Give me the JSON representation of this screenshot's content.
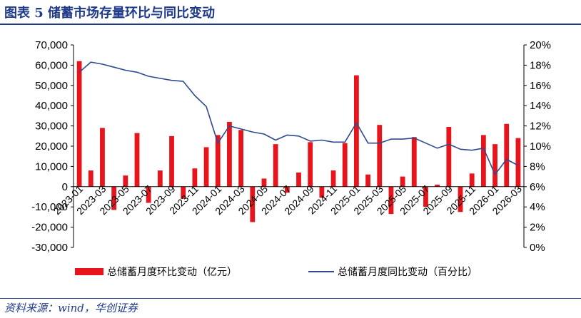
{
  "header": {
    "title": "图表 5   储蓄市场存量环比与同比变动"
  },
  "footer": {
    "source": "资料来源：wind，华创证券"
  },
  "chart_data": {
    "type": "bar",
    "title": "储蓄市场存量环比与同比变动",
    "xlabel": "",
    "ylabel": "",
    "ylim": [
      -30000,
      70000
    ],
    "y2lim": [
      0,
      20
    ],
    "grid": false,
    "legend_position": "bottom",
    "y_ticks": [
      "70,000",
      "60,000",
      "50,000",
      "40,000",
      "30,000",
      "20,000",
      "10,000",
      "0",
      "-10,000",
      "-20,000",
      "-30,000"
    ],
    "y2_ticks": [
      "20%",
      "18%",
      "16%",
      "14%",
      "12%",
      "10%",
      "8%",
      "6%",
      "4%",
      "2%",
      "0%"
    ],
    "x_ticks": [
      "2023-01",
      "2023-03",
      "2023-05",
      "2023-07",
      "2023-09",
      "2023-11",
      "2024-01",
      "2024-03",
      "2024-05",
      "2024-07",
      "2024-09",
      "2024-11",
      "2025-01",
      "2025-03",
      "2025-05",
      "2025-07",
      "2025-09",
      "2025-11",
      "2026-01",
      "2026-03"
    ],
    "categories": [
      "2023-01",
      "2023-02",
      "2023-03",
      "2023-04",
      "2023-05",
      "2023-06",
      "2023-07",
      "2023-08",
      "2023-09",
      "2023-10",
      "2023-11",
      "2023-12",
      "2024-01",
      "2024-02",
      "2024-03",
      "2024-04",
      "2024-05",
      "2024-06",
      "2024-07",
      "2024-08",
      "2024-09",
      "2024-10",
      "2024-11",
      "2024-12",
      "2025-01",
      "2025-02",
      "2025-03",
      "2025-04",
      "2025-05",
      "2025-06",
      "2025-07",
      "2025-08",
      "2025-09",
      "2025-10",
      "2025-11",
      "2025-12",
      "2026-01",
      "2026-02",
      "2026-03"
    ],
    "series": [
      {
        "name": "总储蓄月度环比变动（亿元）",
        "kind": "bar",
        "axis": "left",
        "color": "#e8141b",
        "values": [
          62000,
          8000,
          29000,
          -11500,
          5500,
          26500,
          -8000,
          8000,
          25000,
          -6000,
          9000,
          19500,
          25500,
          32000,
          28000,
          -17500,
          4000,
          21000,
          -3000,
          7000,
          22000,
          -5500,
          8000,
          21500,
          55000,
          6000,
          30500,
          -13500,
          5000,
          24500,
          -10000,
          1000,
          29500,
          -12500,
          6500,
          25500,
          21000,
          31000,
          24000
        ]
      },
      {
        "name": "总储蓄月度同比变动（百分比）",
        "kind": "line",
        "axis": "right",
        "color": "#2f4a8c",
        "values": [
          17.3,
          18.3,
          18.1,
          17.8,
          17.5,
          17.3,
          16.9,
          16.7,
          16.5,
          16.4,
          15.0,
          13.9,
          10.3,
          12.0,
          11.7,
          11.4,
          11.2,
          10.6,
          11.1,
          11.0,
          10.5,
          10.6,
          10.4,
          10.4,
          12.3,
          10.3,
          10.3,
          10.7,
          10.7,
          10.8,
          10.3,
          9.8,
          10.2,
          9.7,
          9.6,
          9.8,
          7.2,
          8.7,
          8.1
        ]
      }
    ]
  }
}
